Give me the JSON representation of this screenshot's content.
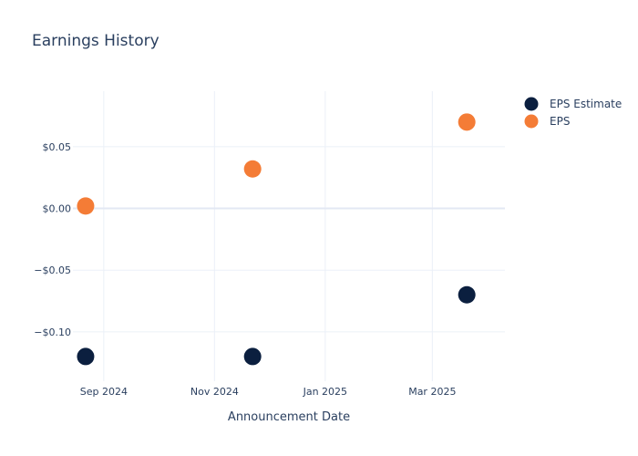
{
  "chart_data": {
    "type": "scatter",
    "title": "Earnings History",
    "xlabel": "Announcement Date",
    "ylabel": "",
    "x_axis_type": "date",
    "xlim": [
      "2024-08-15",
      "2025-04-10"
    ],
    "ylim": [
      -0.14,
      0.095
    ],
    "x_ticks": [
      {
        "date": "2024-09-01",
        "label": "Sep 2024"
      },
      {
        "date": "2024-11-01",
        "label": "Nov 2024"
      },
      {
        "date": "2025-01-01",
        "label": "Jan 2025"
      },
      {
        "date": "2025-03-01",
        "label": "Mar 2025"
      }
    ],
    "y_ticks": [
      {
        "value": 0.05,
        "label": "$0.05"
      },
      {
        "value": 0.0,
        "label": "$0.00"
      },
      {
        "value": -0.05,
        "label": "−$0.05"
      },
      {
        "value": -0.1,
        "label": "−$0.10"
      }
    ],
    "grid": true,
    "legend_position": "top-right",
    "series": [
      {
        "name": "EPS Estimate",
        "color": "#0b1f3f",
        "points": [
          {
            "x": "2024-08-22",
            "y": -0.12
          },
          {
            "x": "2024-11-22",
            "y": -0.12
          },
          {
            "x": "2025-03-20",
            "y": -0.07
          }
        ]
      },
      {
        "name": "EPS",
        "color": "#f47c36",
        "points": [
          {
            "x": "2024-08-22",
            "y": 0.002
          },
          {
            "x": "2024-11-22",
            "y": 0.032
          },
          {
            "x": "2025-03-20",
            "y": 0.07
          }
        ]
      }
    ]
  }
}
